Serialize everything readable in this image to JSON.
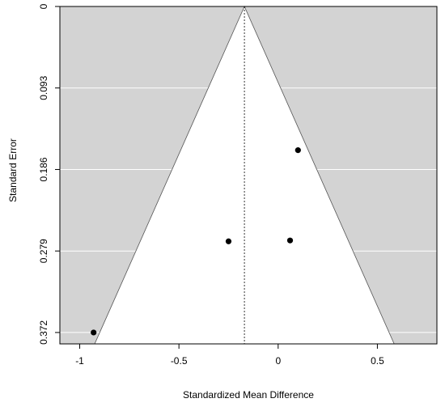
{
  "chart_data": {
    "type": "scatter",
    "title": "",
    "xlabel": "Standardized Mean Difference",
    "ylabel": "Standard Error",
    "xlim": [
      -1.1,
      0.8
    ],
    "ylim": [
      0,
      0.385
    ],
    "y_reversed": true,
    "x_ticks": [
      -1,
      -0.5,
      0,
      0.5
    ],
    "x_tick_labels": [
      "-1",
      "-0.5",
      "0",
      "0.5"
    ],
    "y_ticks": [
      0,
      0.093,
      0.186,
      0.279,
      0.372
    ],
    "y_tick_labels": [
      "0",
      "0.093",
      "0.186",
      "0.279",
      "0.372"
    ],
    "pooled_estimate": -0.17,
    "funnel_z": 1.96,
    "grid": true,
    "background_color": "#d3d3d3",
    "funnel_color": "#ffffff",
    "point_color": "#000000",
    "points": [
      {
        "x": 0.1,
        "y": 0.164
      },
      {
        "x": -0.25,
        "y": 0.268
      },
      {
        "x": 0.06,
        "y": 0.267
      },
      {
        "x": -0.93,
        "y": 0.372
      }
    ]
  }
}
